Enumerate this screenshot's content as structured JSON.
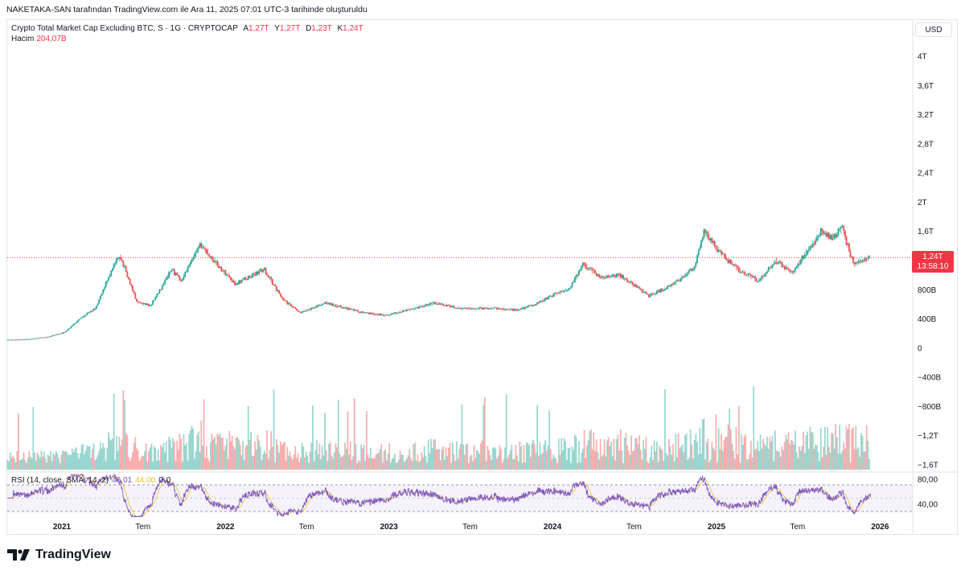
{
  "header": {
    "text": "NAKETAKA-SAN tarafından TradingView.com ile Ara 11, 2025 07:01 UTC-3 tarihinde oluşturuldu"
  },
  "legend": {
    "symbol": "Crypto Total Market Cap Excluding BTC, S · 1G · CRYPTOCAP",
    "open_label": "A",
    "open": "1,27T",
    "high_label": "Y",
    "high": "1,27T",
    "low_label": "D",
    "low": "1,23T",
    "close_label": "K",
    "close": "1,24T",
    "volume_label": "Hacim",
    "volume": "204,07B"
  },
  "currency": "USD",
  "price_tag": {
    "price": "1,24T",
    "countdown": "13:58:10"
  },
  "rsi_legend": {
    "label": "RSI (14, close, SMA, 14, 2)",
    "rsi": "46,01",
    "sma": "44,00",
    "zero": "0",
    "zero2": "0"
  },
  "brand": "TradingView",
  "colors": {
    "up": "#26a69a",
    "down": "#ef5350",
    "rsi": "#7e57c2",
    "rsi_sma": "#e6c229",
    "price_line": "#f23645"
  },
  "chart_data": {
    "type": "line",
    "series": [
      {
        "name": "Crypto Total Market Cap Excluding BTC",
        "x": [
          "2020-09-01",
          "2020-10-15",
          "2020-12-01",
          "2021-01-10",
          "2021-02-15",
          "2021-03-20",
          "2021-04-15",
          "2021-05-12",
          "2021-06-20",
          "2021-07-20",
          "2021-09-05",
          "2021-09-25",
          "2021-11-09",
          "2021-12-10",
          "2022-01-25",
          "2022-03-30",
          "2022-05-12",
          "2022-06-18",
          "2022-08-14",
          "2022-09-20",
          "2022-11-10",
          "2022-12-30",
          "2023-03-10",
          "2023-04-15",
          "2023-06-15",
          "2023-08-20",
          "2023-10-15",
          "2023-11-25",
          "2024-01-01",
          "2024-02-10",
          "2024-03-12",
          "2024-04-20",
          "2024-06-01",
          "2024-08-05",
          "2024-09-25",
          "2024-11-15",
          "2024-12-06",
          "2025-01-15",
          "2025-02-25",
          "2025-04-08",
          "2025-05-15",
          "2025-06-22",
          "2025-07-20",
          "2025-08-25",
          "2025-09-20",
          "2025-10-10",
          "2025-11-05",
          "2025-12-11"
        ],
        "values": [
          0.11,
          0.12,
          0.15,
          0.22,
          0.42,
          0.55,
          0.95,
          1.28,
          0.62,
          0.58,
          1.08,
          0.92,
          1.42,
          1.18,
          0.88,
          1.08,
          0.66,
          0.48,
          0.62,
          0.56,
          0.48,
          0.45,
          0.56,
          0.62,
          0.54,
          0.55,
          0.52,
          0.6,
          0.72,
          0.82,
          1.15,
          0.96,
          1.0,
          0.72,
          0.86,
          1.1,
          1.6,
          1.28,
          1.05,
          0.92,
          1.2,
          1.02,
          1.3,
          1.6,
          1.52,
          1.65,
          1.15,
          1.24
        ]
      }
    ],
    "x_ticks": [
      "2021",
      "Tem",
      "2022",
      "Tem",
      "2023",
      "Tem",
      "2024",
      "Tem",
      "2025",
      "Tem",
      "2026"
    ],
    "y_ticks": [
      "4T",
      "3,6T",
      "3,2T",
      "2,8T",
      "2,4T",
      "2T",
      "1,6T",
      "800B",
      "400B",
      "0",
      "−400B",
      "−800B",
      "−1,2T",
      "−1,6T"
    ],
    "ylim": [
      -1.6,
      4.0
    ],
    "volume_axis": "shared",
    "rsi": {
      "upper": 70,
      "lower": 30,
      "ticks": [
        "80,00",
        "40,00"
      ],
      "last": 46.01,
      "sma_last": 44.0
    },
    "grid": false,
    "legend_position": "top-left"
  }
}
